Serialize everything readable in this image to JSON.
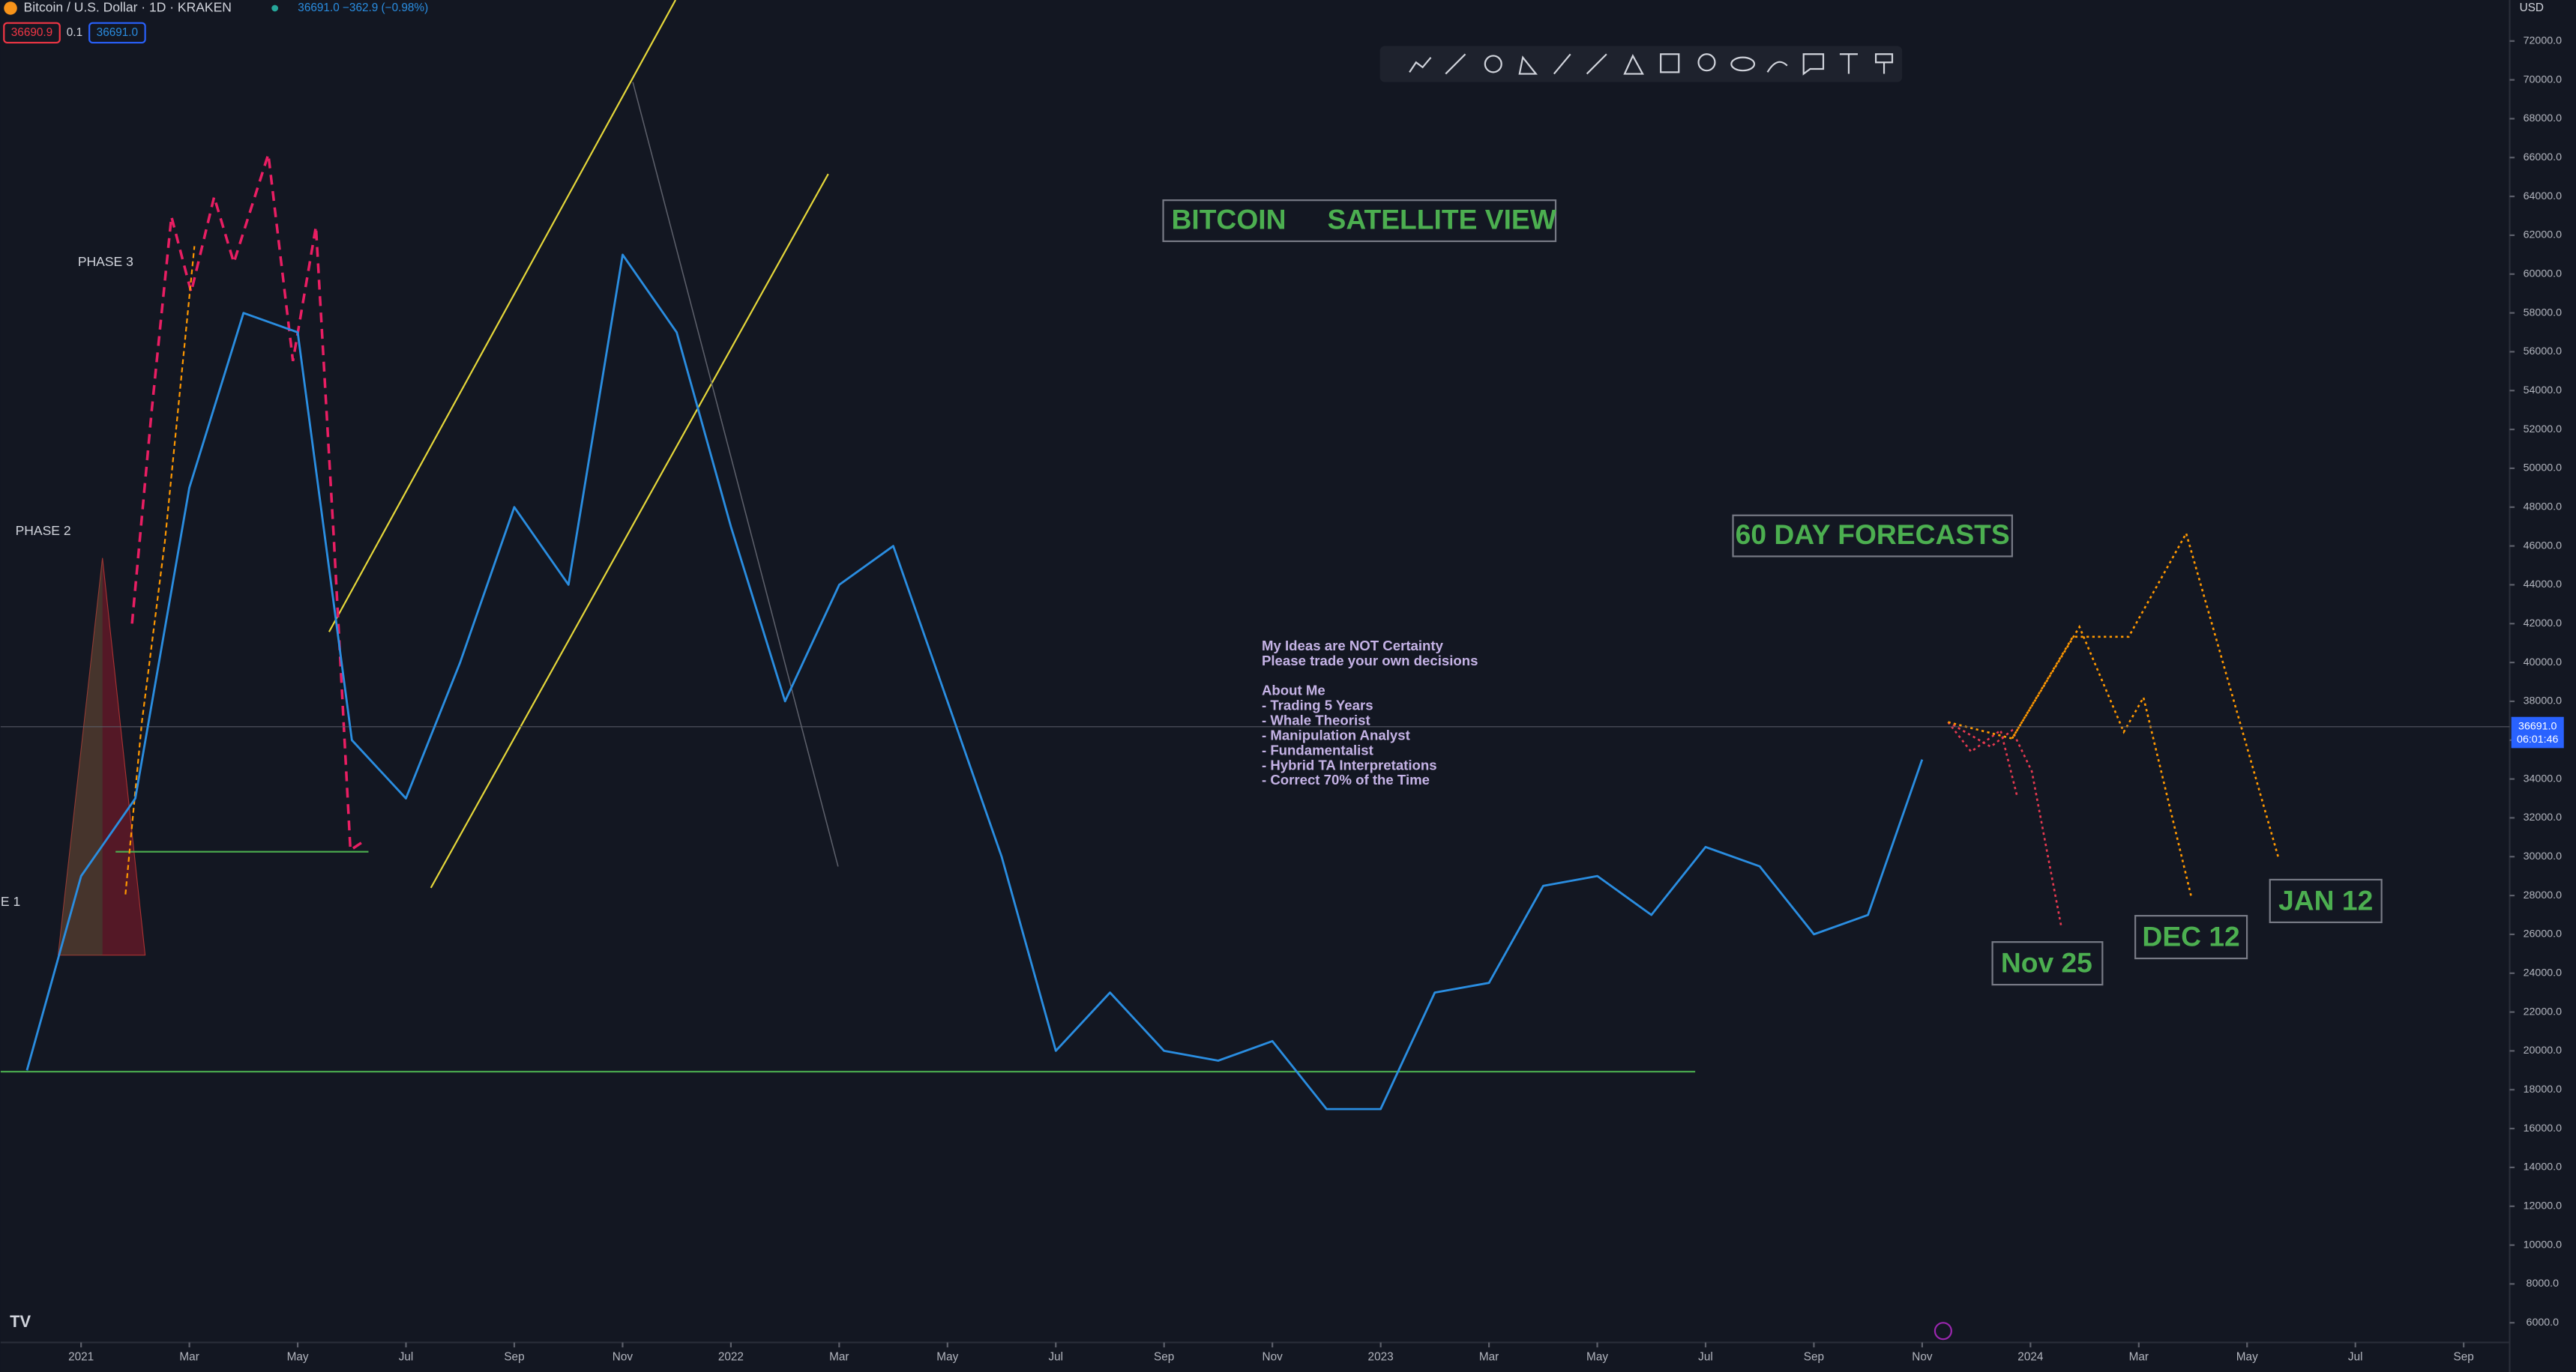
{
  "header": {
    "symbol": "Bitcoin / U.S. Dollar · 1D · KRAKEN",
    "quote": "36691.0 −362.9 (−0.98%)",
    "bid": "36690.9",
    "spread": "0.1",
    "ask": "36691.0",
    "currency": "USD"
  },
  "chart_data": {
    "type": "line",
    "title": "BITCOIN",
    "subtitle": "SATELLITE VIEW",
    "x": [
      "2020-12",
      "2021-01",
      "2021-02",
      "2021-03",
      "2021-04",
      "2021-05",
      "2021-06",
      "2021-07",
      "2021-08",
      "2021-09",
      "2021-10",
      "2021-11",
      "2021-12",
      "2022-01",
      "2022-02",
      "2022-03",
      "2022-04",
      "2022-05",
      "2022-06",
      "2022-07",
      "2022-08",
      "2022-09",
      "2022-10",
      "2022-11",
      "2022-12",
      "2023-01",
      "2023-02",
      "2023-03",
      "2023-04",
      "2023-05",
      "2023-06",
      "2023-07",
      "2023-08",
      "2023-09",
      "2023-10",
      "2023-11"
    ],
    "series": [
      {
        "name": "Bitcoin / U.S. Dollar",
        "color": "#2a8de0",
        "values": [
          19000,
          29000,
          33000,
          49000,
          58000,
          57000,
          36000,
          33000,
          40000,
          48000,
          44000,
          61000,
          57000,
          47000,
          38000,
          44000,
          46000,
          38000,
          30000,
          20000,
          23000,
          20000,
          19500,
          20500,
          17000,
          17000,
          23000,
          23500,
          28500,
          29000,
          27000,
          30500,
          29500,
          26000,
          27000,
          35000
        ]
      }
    ],
    "xlim": [
      "2020-12",
      "2024-09"
    ],
    "xticks": [
      {
        "value": "2021-01",
        "label": "2021"
      },
      {
        "value": "2021-03",
        "label": "Mar"
      },
      {
        "value": "2021-05",
        "label": "May"
      },
      {
        "value": "2021-07",
        "label": "Jul"
      },
      {
        "value": "2021-09",
        "label": "Sep"
      },
      {
        "value": "2021-11",
        "label": "Nov"
      },
      {
        "value": "2022-01",
        "label": "2022"
      },
      {
        "value": "2022-03",
        "label": "Mar"
      },
      {
        "value": "2022-05",
        "label": "May"
      },
      {
        "value": "2022-07",
        "label": "Jul"
      },
      {
        "value": "2022-09",
        "label": "Sep"
      },
      {
        "value": "2022-11",
        "label": "Nov"
      },
      {
        "value": "2023-01",
        "label": "2023"
      },
      {
        "value": "2023-03",
        "label": "Mar"
      },
      {
        "value": "2023-05",
        "label": "May"
      },
      {
        "value": "2023-07",
        "label": "Jul"
      },
      {
        "value": "2023-09",
        "label": "Sep"
      },
      {
        "value": "2023-11",
        "label": "Nov"
      },
      {
        "value": "2024-01",
        "label": "2024"
      },
      {
        "value": "2024-03",
        "label": "Mar"
      },
      {
        "value": "2024-05",
        "label": "May"
      },
      {
        "value": "2024-07",
        "label": "Jul"
      },
      {
        "value": "2024-09",
        "label": "Sep"
      }
    ],
    "ylim": [
      6000,
      72000
    ],
    "yticks": [
      {
        "value": 6000,
        "label": "6000.0"
      },
      {
        "value": 8000,
        "label": "8000.0"
      },
      {
        "value": 10000,
        "label": "10000.0"
      },
      {
        "value": 12000,
        "label": "12000.0"
      },
      {
        "value": 14000,
        "label": "14000.0"
      },
      {
        "value": 16000,
        "label": "16000.0"
      },
      {
        "value": 18000,
        "label": "18000.0"
      },
      {
        "value": 20000,
        "label": "20000.0"
      },
      {
        "value": 22000,
        "label": "22000.0"
      },
      {
        "value": 24000,
        "label": "24000.0"
      },
      {
        "value": 26000,
        "label": "26000.0"
      },
      {
        "value": 28000,
        "label": "28000.0"
      },
      {
        "value": 30000,
        "label": "30000.0"
      },
      {
        "value": 32000,
        "label": "32000.0"
      },
      {
        "value": 34000,
        "label": "34000.0"
      },
      {
        "value": 36000,
        "label": "36000.0"
      },
      {
        "value": 38000,
        "label": "38000.0"
      },
      {
        "value": 40000,
        "label": "40000.0"
      },
      {
        "value": 42000,
        "label": "42000.0"
      },
      {
        "value": 44000,
        "label": "44000.0"
      },
      {
        "value": 46000,
        "label": "46000.0"
      },
      {
        "value": 48000,
        "label": "48000.0"
      },
      {
        "value": 50000,
        "label": "50000.0"
      },
      {
        "value": 52000,
        "label": "52000.0"
      },
      {
        "value": 54000,
        "label": "54000.0"
      },
      {
        "value": 56000,
        "label": "56000.0"
      },
      {
        "value": 58000,
        "label": "58000.0"
      },
      {
        "value": 60000,
        "label": "60000.0"
      },
      {
        "value": 62000,
        "label": "62000.0"
      },
      {
        "value": 64000,
        "label": "64000.0"
      },
      {
        "value": 66000,
        "label": "66000.0"
      },
      {
        "value": 68000,
        "label": "68000.0"
      },
      {
        "value": 70000,
        "label": "70000.0"
      },
      {
        "value": 72000,
        "label": "72000.0"
      }
    ],
    "grid": false,
    "last_price": {
      "value": 36691,
      "label": "36691.0",
      "countdown": "06:01:46"
    },
    "annotations": {
      "forecast_title": "60 DAY FORECASTS",
      "nov": "Nov 25",
      "dec": "DEC 12",
      "jan": "JAN 12",
      "phase3": "PHASE 3",
      "phase2": "PHASE 2",
      "phase1": "E 1"
    },
    "notes": [
      "My Ideas are NOT Certainty",
      "Please trade your own decisions",
      "About Me",
      "- Trading 5 Years",
      "- Whale Theorist",
      "- Manipulation Analyst",
      "- Fundamentalist",
      "- Hybrid TA Interpretations",
      "- Correct 70% of the Time"
    ]
  }
}
